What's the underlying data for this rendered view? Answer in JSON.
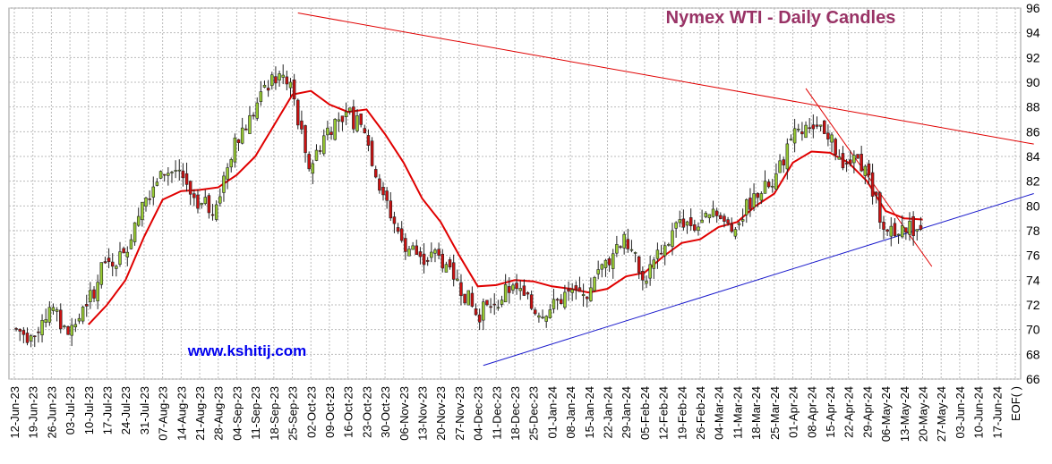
{
  "chart_data": {
    "type": "candlestick",
    "title": "Nymex  WTI - Daily Candles",
    "watermark": "www.kshitij.com",
    "ylim": [
      66,
      96
    ],
    "y_ticks": [
      66,
      68,
      70,
      72,
      74,
      76,
      78,
      80,
      82,
      84,
      86,
      88,
      90,
      92,
      94,
      96
    ],
    "x_ticks": [
      "12-Jun-23",
      "19-Jun-23",
      "26-Jun-23",
      "03-Jul-23",
      "10-Jul-23",
      "17-Jul-23",
      "24-Jul-23",
      "31-Jul-23",
      "07-Aug-23",
      "14-Aug-23",
      "21-Aug-23",
      "28-Aug-23",
      "04-Sep-23",
      "11-Sep-23",
      "18-Sep-23",
      "25-Sep-23",
      "02-Oct-23",
      "09-Oct-23",
      "16-Oct-23",
      "23-Oct-23",
      "30-Oct-23",
      "06-Nov-23",
      "13-Nov-23",
      "20-Nov-23",
      "27-Nov-23",
      "04-Dec-23",
      "11-Dec-23",
      "18-Dec-23",
      "25-Dec-23",
      "01-Jan-24",
      "08-Jan-24",
      "15-Jan-24",
      "22-Jan-24",
      "29-Jan-24",
      "05-Feb-24",
      "12-Feb-24",
      "19-Feb-24",
      "26-Feb-24",
      "04-Mar-24",
      "11-Mar-24",
      "18-Mar-24",
      "25-Mar-24",
      "01-Apr-24",
      "08-Apr-24",
      "15-Apr-24",
      "22-Apr-24",
      "29-Apr-24",
      "06-May-24",
      "13-May-24",
      "20-May-24",
      "27-May-24",
      "03-Jun-24",
      "10-Jun-24",
      "17-Jun-24"
    ],
    "last_x_label": "EOF( )",
    "weekly_closes": [
      69.5,
      71.8,
      69.6,
      71.9,
      75.4,
      76.2,
      80.3,
      82.8,
      82.9,
      79.8,
      80.1,
      85.5,
      87.3,
      90.6,
      90.0,
      83.0,
      86.3,
      87.6,
      85.9,
      80.9,
      77.2,
      75.9,
      76.0,
      74.1,
      71.2,
      72.0,
      73.6,
      71.7,
      71.6,
      73.1,
      72.5,
      75.6,
      77.7,
      74.0,
      76.1,
      78.9,
      78.3,
      79.2,
      78.1,
      81.0,
      81.6,
      85.4,
      86.3,
      85.4,
      83.4,
      83.2,
      78.1,
      78.4,
      78.1
    ],
    "moving_average": {
      "color": "#e00000",
      "points": [
        [
          70.4,
          4
        ],
        [
          72.0,
          5
        ],
        [
          74.0,
          6
        ],
        [
          77.5,
          7
        ],
        [
          80.5,
          8
        ],
        [
          81.2,
          9
        ],
        [
          81.3,
          10
        ],
        [
          81.5,
          11
        ],
        [
          82.5,
          12
        ],
        [
          84.0,
          13
        ],
        [
          86.5,
          14
        ],
        [
          89.0,
          15
        ],
        [
          89.3,
          16
        ],
        [
          88.2,
          17
        ],
        [
          87.6,
          18
        ],
        [
          87.8,
          19
        ],
        [
          85.8,
          20
        ],
        [
          83.5,
          21
        ],
        [
          80.6,
          22
        ],
        [
          78.7,
          23
        ],
        [
          76.0,
          24
        ],
        [
          73.5,
          25
        ],
        [
          73.6,
          26
        ],
        [
          74.0,
          27
        ],
        [
          73.9,
          28
        ],
        [
          73.5,
          29
        ],
        [
          73.3,
          30
        ],
        [
          73.0,
          31
        ],
        [
          73.3,
          32
        ],
        [
          74.3,
          33
        ],
        [
          74.6,
          34
        ],
        [
          75.9,
          35
        ],
        [
          77.0,
          36
        ],
        [
          77.3,
          37
        ],
        [
          78.3,
          38
        ],
        [
          78.7,
          39
        ],
        [
          80.0,
          40
        ],
        [
          81.0,
          41
        ],
        [
          83.5,
          42
        ],
        [
          84.4,
          43
        ],
        [
          84.3,
          44
        ],
        [
          83.5,
          45
        ],
        [
          82.0,
          46
        ],
        [
          79.6,
          47
        ],
        [
          79.0,
          48
        ],
        [
          78.9,
          49
        ]
      ]
    },
    "trendlines": [
      {
        "name": "upper",
        "color": "#e00000",
        "from": [
          15.3,
          95.6
        ],
        "to": [
          55.0,
          85.0
        ]
      },
      {
        "name": "lower",
        "color": "#1a1acc",
        "from": [
          25.3,
          67.1
        ],
        "to": [
          55.0,
          81.0
        ]
      },
      {
        "name": "steep",
        "color": "#e00000",
        "from": [
          42.7,
          89.5
        ],
        "to": [
          49.5,
          75.1
        ]
      }
    ],
    "colors": {
      "up": "#99cc33",
      "down": "#cc1111",
      "grid": "#bbbbbb",
      "title": "#993366",
      "watermark": "#0000ee"
    },
    "grid": true
  }
}
